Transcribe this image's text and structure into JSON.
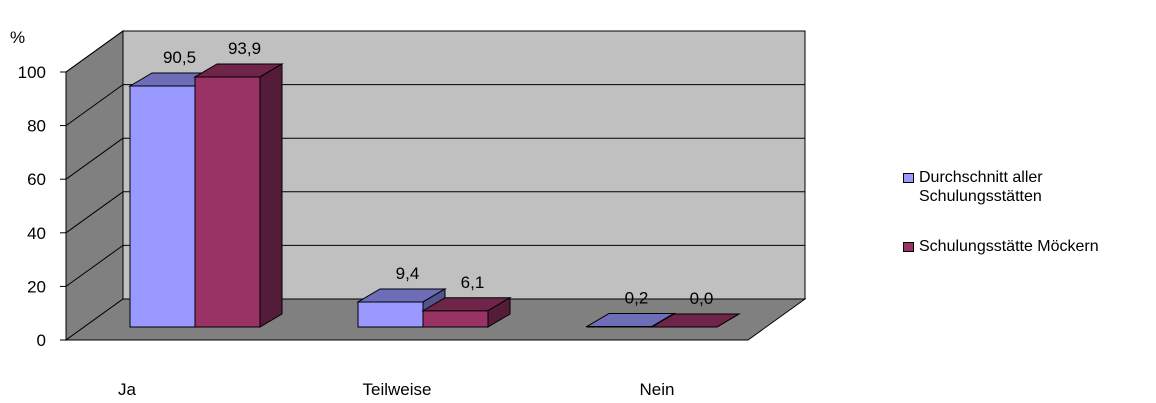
{
  "chart_data": {
    "type": "bar",
    "ylabel": "%",
    "ylim": [
      0,
      100
    ],
    "yticks": [
      "0",
      "20",
      "40",
      "60",
      "80",
      "100"
    ],
    "grid": true,
    "legend_position": "right",
    "categories": [
      "Ja",
      "Teilweise",
      "Nein"
    ],
    "series": [
      {
        "name": "Durchschnitt aller Schulungsstätten",
        "values": [
          90.5,
          9.4,
          0.2
        ],
        "labels": [
          "90,5",
          "9,4",
          "0,2"
        ],
        "color": "#9999ff"
      },
      {
        "name": "Schulungsstätte Möckern",
        "values": [
          93.9,
          6.1,
          0.0
        ],
        "labels": [
          "93,9",
          "6,1",
          "0,0"
        ],
        "color": "#993366"
      }
    ]
  }
}
